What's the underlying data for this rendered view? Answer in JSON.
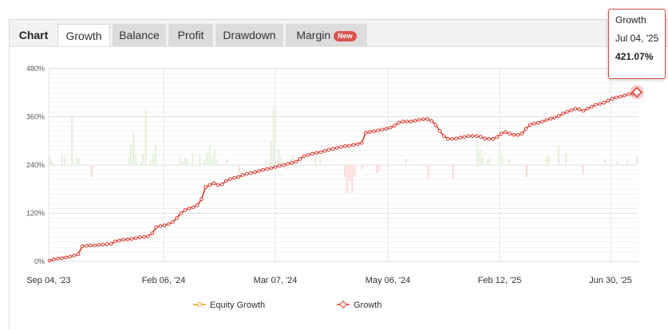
{
  "tabs": [
    {
      "label": "Chart",
      "kind": "title"
    },
    {
      "label": "Growth",
      "kind": "active"
    },
    {
      "label": "Balance",
      "kind": "normal"
    },
    {
      "label": "Profit",
      "kind": "normal"
    },
    {
      "label": "Drawdown",
      "kind": "normal"
    },
    {
      "label": "Margin",
      "kind": "normal",
      "badge": "New"
    }
  ],
  "tooltip": {
    "series": "Growth",
    "date": "Jul 04, '25",
    "value": "421.07%"
  },
  "colors": {
    "growth_line": "#d63a2f",
    "equity_line": "#f0a020",
    "bar_positive": "#e3f0dc",
    "bar_negative": "#fbd9d9",
    "badge": "#d9534f"
  },
  "chart_data": {
    "type": "line",
    "ylim": [
      0,
      480
    ],
    "y_ticks": [
      "0%",
      "120%",
      "240%",
      "360%",
      "480%"
    ],
    "x_tick_labels": [
      "Sep 04, '23",
      "Feb 06, '24",
      "Mar 07, '24",
      "May 06, '24",
      "Feb 12, '25",
      "Jun 30, '25"
    ],
    "legend": [
      "Equity Growth",
      "Growth"
    ],
    "legend_position": "bottom",
    "series": [
      {
        "name": "Growth",
        "values": [
          2,
          5,
          7,
          8,
          10,
          12,
          15,
          18,
          38,
          39,
          40,
          40,
          41,
          42,
          43,
          44,
          50,
          52,
          54,
          55,
          56,
          58,
          60,
          61,
          63,
          70,
          85,
          88,
          90,
          93,
          98,
          108,
          120,
          128,
          132,
          135,
          140,
          155,
          185,
          190,
          195,
          190,
          192,
          200,
          205,
          208,
          210,
          215,
          218,
          220,
          222,
          225,
          228,
          230,
          232,
          235,
          238,
          240,
          243,
          245,
          248,
          255,
          262,
          265,
          268,
          270,
          272,
          275,
          278,
          280,
          283,
          285,
          287,
          288,
          290,
          292,
          295,
          320,
          322,
          324,
          326,
          328,
          330,
          333,
          338,
          345,
          348,
          348,
          348,
          350,
          352,
          354,
          354,
          350,
          340,
          325,
          312,
          305,
          305,
          306,
          308,
          310,
          312,
          312,
          312,
          310,
          306,
          305,
          305,
          310,
          318,
          322,
          318,
          315,
          315,
          318,
          330,
          340,
          343,
          345,
          348,
          352,
          355,
          358,
          362,
          368,
          372,
          376,
          380,
          378,
          375,
          380,
          385,
          390,
          392,
          395,
          400,
          405,
          408,
          410,
          413,
          416,
          418,
          421.07
        ]
      },
      {
        "name": "Equity Growth",
        "values": []
      }
    ],
    "bars": [
      10,
      5,
      0,
      0,
      0,
      12,
      10,
      0,
      0,
      60,
      0,
      12,
      8,
      0,
      0,
      0,
      0,
      -15,
      0,
      0,
      0,
      0,
      0,
      0,
      0,
      0,
      0,
      0,
      0,
      0,
      0,
      0,
      10,
      25,
      40,
      12,
      0,
      5,
      15,
      70,
      0,
      5,
      15,
      25,
      0,
      0,
      0,
      0,
      0,
      0,
      0,
      0,
      0,
      10,
      5,
      10,
      8,
      0,
      15,
      0,
      0,
      12,
      0,
      8,
      16,
      25,
      10,
      20,
      6,
      0,
      0,
      0,
      8,
      0,
      0,
      0,
      0,
      -10,
      0,
      0,
      0,
      0,
      0,
      0,
      0,
      0,
      0,
      0,
      5,
      0,
      30,
      70,
      0,
      20,
      10,
      0,
      -5,
      0,
      8,
      12,
      0,
      0,
      0,
      0,
      0,
      0,
      0,
      0,
      10,
      0,
      8,
      0,
      0,
      0,
      0,
      0,
      0,
      0,
      0,
      0,
      -15,
      -35,
      -20,
      -35,
      -15,
      0,
      0,
      -5,
      0,
      0,
      0,
      0,
      0,
      -10,
      -8,
      0,
      0,
      0,
      0,
      0,
      0,
      0,
      0,
      0,
      0,
      8,
      0,
      0,
      0,
      0,
      0,
      0,
      0,
      0,
      -18,
      0,
      0,
      0,
      0,
      0,
      0,
      0,
      0,
      0,
      -18,
      0,
      0,
      0,
      0,
      0,
      0,
      0,
      0,
      0,
      30,
      20,
      10,
      0,
      5,
      10,
      0,
      0,
      0,
      20,
      10,
      0,
      0,
      8,
      0,
      0,
      0,
      0,
      0,
      0,
      -15,
      0,
      0,
      0,
      0,
      0,
      0,
      0,
      10,
      12,
      0,
      0,
      0,
      25,
      0,
      0,
      15,
      0,
      0,
      0,
      0,
      0,
      0,
      -12,
      0,
      0,
      0,
      0,
      0,
      0,
      0,
      0,
      8,
      0,
      0,
      0,
      0,
      5,
      0,
      0,
      0,
      6,
      0,
      0,
      0,
      12
    ]
  }
}
